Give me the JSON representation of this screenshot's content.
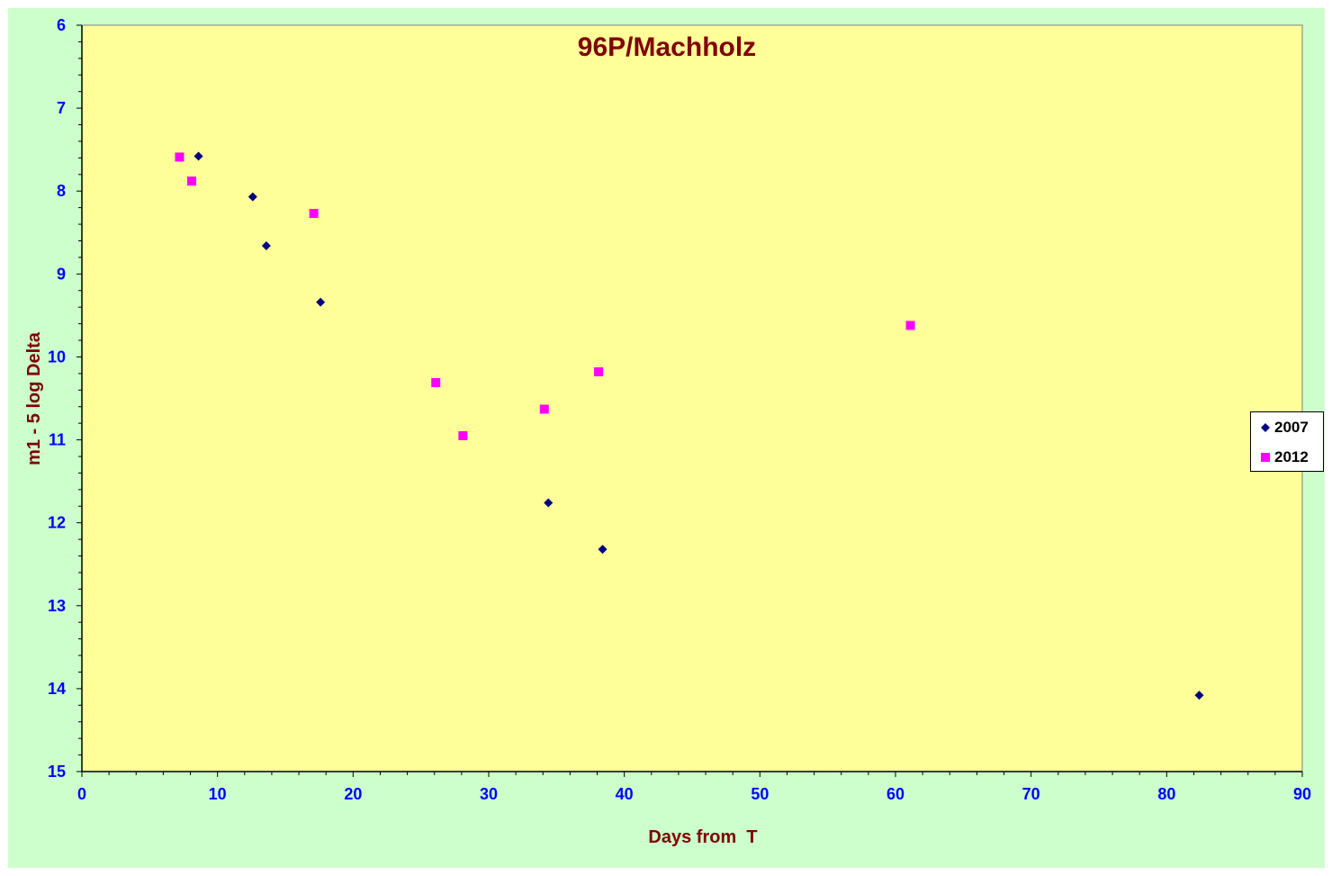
{
  "chart_data": {
    "type": "scatter",
    "title": "96P/Machholz",
    "xlabel": "Days from  T",
    "ylabel": "m1 - 5 log Delta",
    "xlim": [
      0,
      90
    ],
    "ylim": [
      6,
      15
    ],
    "y_inverted": true,
    "x_ticks": [
      0,
      10,
      20,
      30,
      40,
      50,
      60,
      70,
      80,
      90
    ],
    "y_ticks": [
      6,
      7,
      8,
      9,
      10,
      11,
      12,
      13,
      14,
      15
    ],
    "grid": false,
    "legend_position": "right",
    "series": [
      {
        "name": "2007",
        "marker": "diamond",
        "color": "#000080",
        "points": [
          [
            8.6,
            7.58
          ],
          [
            12.6,
            8.07
          ],
          [
            13.6,
            8.66
          ],
          [
            17.6,
            9.34
          ],
          [
            34.4,
            11.76
          ],
          [
            38.4,
            12.32
          ],
          [
            82.4,
            14.08
          ]
        ]
      },
      {
        "name": "2012",
        "marker": "square",
        "color": "#ff00ff",
        "points": [
          [
            7.2,
            7.59
          ],
          [
            8.1,
            7.88
          ],
          [
            17.1,
            8.27
          ],
          [
            26.1,
            10.31
          ],
          [
            28.1,
            10.95
          ],
          [
            34.1,
            10.63
          ],
          [
            38.1,
            10.18
          ],
          [
            61.1,
            9.62
          ]
        ]
      }
    ]
  },
  "colors": {
    "chart_background": "#ccffcc",
    "plot_background": "#ffff99",
    "tick_label_color": "#0000ff",
    "title_color": "#800000"
  }
}
